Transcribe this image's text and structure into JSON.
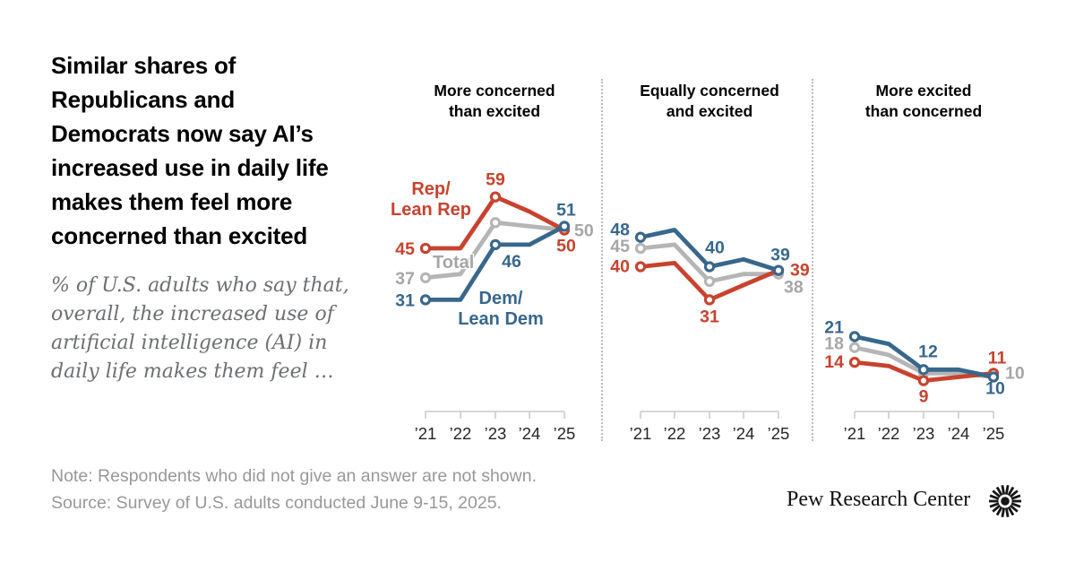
{
  "title": "Similar shares of\nRepublicans and\nDemocrats now say AI’s\nincreased use in daily life\nmakes them feel more\nconcerned than excited",
  "subtitle": "% of U.S. adults who say that,\noverall, the increased use of\nartificial intelligence (AI) in\ndaily life makes them feel …",
  "note": "Note: Respondents who did not give an answer are not shown.",
  "source": "Source: Survey of U.S. adults conducted June 9-15, 2025.",
  "logo_text": "Pew Research Center",
  "legend": {
    "rep": "Rep/\nLean Rep",
    "total": "Total",
    "dem": "Dem/\nLean Dem"
  },
  "colors": {
    "rep": "#c7432e",
    "dem": "#38678c",
    "total_line": "#b5b5b5",
    "total_label": "#a6a6a6",
    "axis": "#c9c9c9",
    "year_label": "#262626"
  },
  "chart_data": [
    {
      "type": "line",
      "title": "More concerned\nthan excited",
      "x": [
        "’21",
        "’22",
        "’23",
        "’24",
        "’25"
      ],
      "ylim": [
        0,
        65
      ],
      "series": [
        {
          "key": "total",
          "name": "Total",
          "values": [
            37,
            38,
            52,
            51,
            50
          ]
        },
        {
          "key": "rep",
          "name": "Rep/Lean Rep",
          "values": [
            45,
            45,
            59,
            55,
            50
          ]
        },
        {
          "key": "dem",
          "name": "Dem/Lean Dem",
          "values": [
            31,
            31,
            46,
            46,
            51
          ]
        }
      ]
    },
    {
      "type": "line",
      "title": "Equally concerned\nand excited",
      "x": [
        "’21",
        "’22",
        "’23",
        "’24",
        "’25"
      ],
      "ylim": [
        0,
        65
      ],
      "series": [
        {
          "key": "total",
          "name": "Total",
          "values": [
            45,
            46,
            36,
            38,
            38
          ]
        },
        {
          "key": "rep",
          "name": "Rep/Lean Rep",
          "values": [
            40,
            41,
            31,
            35,
            39
          ]
        },
        {
          "key": "dem",
          "name": "Dem/Lean Dem",
          "values": [
            48,
            50,
            40,
            42,
            39
          ]
        }
      ]
    },
    {
      "type": "line",
      "title": "More excited\nthan concerned",
      "x": [
        "’21",
        "’22",
        "’23",
        "’24",
        "’25"
      ],
      "ylim": [
        0,
        65
      ],
      "series": [
        {
          "key": "total",
          "name": "Total",
          "values": [
            18,
            16,
            11,
            11,
            10
          ]
        },
        {
          "key": "rep",
          "name": "Rep/Lean Rep",
          "values": [
            14,
            13,
            9,
            10,
            11
          ]
        },
        {
          "key": "dem",
          "name": "Dem/Lean Dem",
          "values": [
            21,
            19,
            12,
            12,
            10
          ]
        }
      ]
    }
  ]
}
